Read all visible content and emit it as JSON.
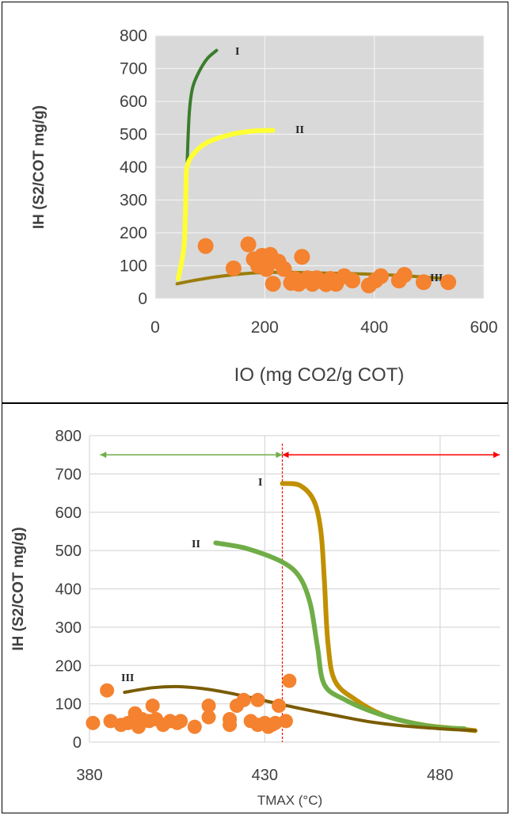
{
  "chart_data": [
    {
      "type": "scatter",
      "xlabel": "IO (mg CO2/g COT)",
      "ylabel": "IH (S2/COT mg/g)",
      "xlim": [
        0,
        600
      ],
      "ylim": [
        0,
        800
      ],
      "x_ticks": [
        "0",
        "200",
        "400",
        "600"
      ],
      "y_ticks": [
        "0",
        "100",
        "200",
        "300",
        "400",
        "500",
        "600",
        "700",
        "800"
      ],
      "grid": true,
      "background": "#d9d9d9",
      "curves": [
        {
          "name": "I",
          "color": "#3a7d2c",
          "points": [
            [
              58,
              400
            ],
            [
              62,
              560
            ],
            [
              68,
              640
            ],
            [
              80,
              690
            ],
            [
              95,
              730
            ],
            [
              112,
              755
            ]
          ]
        },
        {
          "name": "II",
          "color": "#ffff33",
          "points": [
            [
              42,
              60
            ],
            [
              52,
              150
            ],
            [
              55,
              250
            ],
            [
              56,
              330
            ],
            [
              58,
              400
            ],
            [
              70,
              440
            ],
            [
              95,
              475
            ],
            [
              140,
              500
            ],
            [
              180,
              510
            ],
            [
              215,
              512
            ]
          ]
        },
        {
          "name": "III",
          "color": "#9c7d0a",
          "points": [
            [
              40,
              45
            ],
            [
              70,
              55
            ],
            [
              120,
              68
            ],
            [
              180,
              78
            ],
            [
              240,
              80
            ],
            [
              300,
              78
            ],
            [
              380,
              75
            ],
            [
              450,
              70
            ],
            [
              520,
              62
            ]
          ]
        }
      ],
      "series": [
        {
          "color": "#f4822f",
          "points": [
            [
              92,
              160
            ],
            [
              143,
              92
            ],
            [
              170,
              165
            ],
            [
              180,
              120
            ],
            [
              188,
              100
            ],
            [
              195,
              130
            ],
            [
              203,
              90
            ],
            [
              210,
              133
            ],
            [
              215,
              45
            ],
            [
              225,
              112
            ],
            [
              235,
              90
            ],
            [
              248,
              48
            ],
            [
              255,
              60
            ],
            [
              262,
              45
            ],
            [
              268,
              127
            ],
            [
              278,
              62
            ],
            [
              287,
              45
            ],
            [
              295,
              62
            ],
            [
              305,
              52
            ],
            [
              312,
              44
            ],
            [
              320,
              60
            ],
            [
              330,
              45
            ],
            [
              345,
              68
            ],
            [
              360,
              55
            ],
            [
              390,
              40
            ],
            [
              402,
              55
            ],
            [
              412,
              68
            ],
            [
              445,
              55
            ],
            [
              455,
              72
            ],
            [
              490,
              50
            ],
            [
              535,
              50
            ]
          ]
        }
      ]
    },
    {
      "type": "scatter",
      "xlabel": "TMAX (°C)",
      "ylabel": "IH (S2/COT mg/g)",
      "xlim": [
        380,
        497
      ],
      "ylim": [
        0,
        800
      ],
      "x_ticks": [
        "380",
        "430",
        "480"
      ],
      "y_ticks": [
        "0",
        "100",
        "200",
        "300",
        "400",
        "500",
        "600",
        "700",
        "800"
      ],
      "grid": true,
      "background": "#ffffff",
      "threshold_x": 435,
      "arrows": [
        {
          "from": 383,
          "to": 435,
          "y": 750,
          "color": "#70ad47"
        },
        {
          "from": 435,
          "to": 497,
          "y": 750,
          "color": "#ff0000"
        }
      ],
      "curves": [
        {
          "name": "I",
          "color": "#c09000",
          "points": [
            [
              435,
              675
            ],
            [
              440,
              670
            ],
            [
              444,
              630
            ],
            [
              446,
              550
            ],
            [
              447,
              420
            ],
            [
              448,
              260
            ],
            [
              450,
              160
            ],
            [
              456,
              110
            ],
            [
              464,
              70
            ],
            [
              475,
              45
            ],
            [
              485,
              35
            ],
            [
              490,
              30
            ]
          ]
        },
        {
          "name": "II",
          "color": "#70ad47",
          "points": [
            [
              416,
              520
            ],
            [
              425,
              505
            ],
            [
              435,
              470
            ],
            [
              440,
              430
            ],
            [
              443,
              360
            ],
            [
              445,
              250
            ],
            [
              447,
              150
            ],
            [
              453,
              110
            ],
            [
              462,
              75
            ],
            [
              472,
              50
            ],
            [
              480,
              38
            ],
            [
              487,
              35
            ]
          ]
        },
        {
          "name": "III",
          "color": "#7a5c00",
          "points": [
            [
              390,
              130
            ],
            [
              398,
              142
            ],
            [
              405,
              145
            ],
            [
              412,
              140
            ],
            [
              420,
              128
            ],
            [
              430,
              108
            ],
            [
              440,
              88
            ],
            [
              450,
              70
            ],
            [
              460,
              53
            ],
            [
              470,
              42
            ],
            [
              480,
              35
            ],
            [
              490,
              30
            ]
          ]
        }
      ],
      "series": [
        {
          "color": "#f4822f",
          "points": [
            [
              381,
              50
            ],
            [
              385,
              135
            ],
            [
              386,
              55
            ],
            [
              389,
              45
            ],
            [
              391,
              50
            ],
            [
              393,
              75
            ],
            [
              393,
              55
            ],
            [
              394,
              40
            ],
            [
              395,
              60
            ],
            [
              397,
              55
            ],
            [
              398,
              95
            ],
            [
              399,
              60
            ],
            [
              401,
              45
            ],
            [
              403,
              55
            ],
            [
              405,
              50
            ],
            [
              406,
              55
            ],
            [
              410,
              40
            ],
            [
              414,
              95
            ],
            [
              414,
              65
            ],
            [
              420,
              60
            ],
            [
              420,
              45
            ],
            [
              422,
              95
            ],
            [
              424,
              110
            ],
            [
              426,
              55
            ],
            [
              428,
              110
            ],
            [
              428,
              45
            ],
            [
              430,
              50
            ],
            [
              431,
              40
            ],
            [
              432,
              45
            ],
            [
              433,
              50
            ],
            [
              434,
              95
            ],
            [
              436,
              55
            ],
            [
              437,
              160
            ]
          ]
        }
      ]
    }
  ]
}
